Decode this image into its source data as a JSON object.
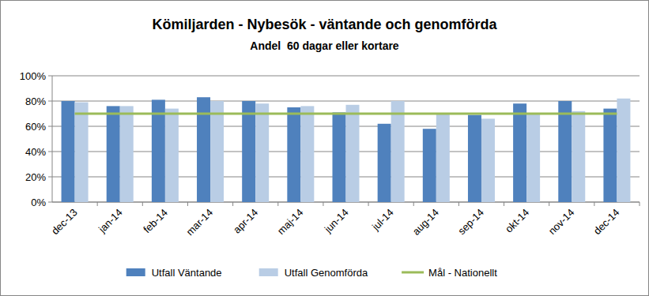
{
  "chart_data": {
    "type": "bar",
    "title": "Kömiljarden - Nybesök - väntande och genomförda",
    "subtitle": "Andel  60 dagar eller kortare",
    "categories": [
      "dec-13",
      "jan-14",
      "feb-14",
      "mar-14",
      "apr-14",
      "maj-14",
      "jun-14",
      "jul-14",
      "aug-14",
      "sep-14",
      "okt-14",
      "nov-14",
      "dec-14"
    ],
    "series": [
      {
        "name": "Utfall Väntande",
        "color": "#4f81bd",
        "values": [
          80,
          76,
          81,
          83,
          80,
          75,
          71,
          62,
          58,
          69,
          78,
          80,
          74
        ]
      },
      {
        "name": "Utfall Genomförda",
        "color": "#b9cde5",
        "values": [
          79,
          76,
          74,
          80,
          78,
          76,
          77,
          80,
          70,
          66,
          70,
          72,
          82
        ]
      },
      {
        "name": "Mål - Nationellt",
        "color": "#9bbb59",
        "type": "line",
        "values": [
          70,
          70,
          70,
          70,
          70,
          70,
          70,
          70,
          70,
          70,
          70,
          70,
          70
        ]
      }
    ],
    "ylim": [
      0,
      100
    ],
    "yticks": [
      {
        "value": 0,
        "label": "0%"
      },
      {
        "value": 20,
        "label": "20%"
      },
      {
        "value": 40,
        "label": "40%"
      },
      {
        "value": 60,
        "label": "60%"
      },
      {
        "value": 80,
        "label": "80%"
      },
      {
        "value": 100,
        "label": "100%"
      }
    ],
    "grid": true,
    "legend": "bottom"
  }
}
